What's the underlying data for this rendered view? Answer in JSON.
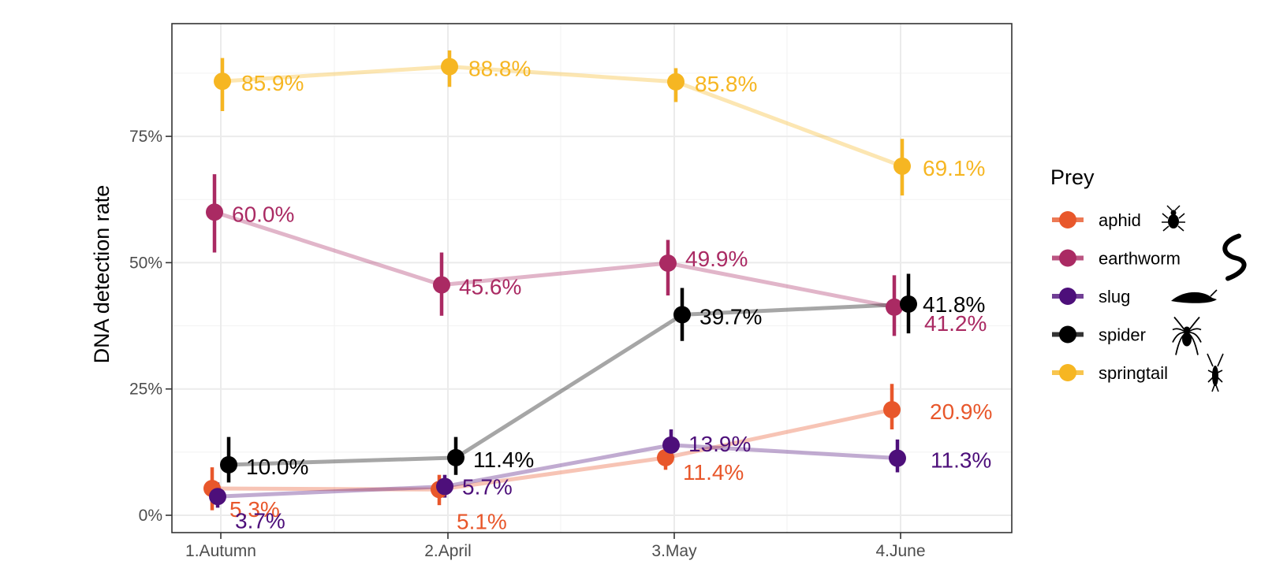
{
  "chart_data": {
    "type": "line",
    "ylabel": "DNA detection rate",
    "xlabel": "",
    "categories": [
      "1.Autumn",
      "2.April",
      "3.May",
      "4.June"
    ],
    "ylim": [
      0,
      0.97
    ],
    "yticks": [
      0,
      0.25,
      0.5,
      0.75
    ],
    "ytick_labels": [
      "0%",
      "25%",
      "50%",
      "75%"
    ],
    "grid": true,
    "legend": {
      "title": "Prey",
      "position": "right"
    },
    "series": [
      {
        "name": "aphid",
        "color": "#E8572B",
        "icon": "aphid-icon",
        "values": [
          0.053,
          0.051,
          0.114,
          0.209
        ],
        "lower": [
          0.01,
          0.02,
          0.09,
          0.17
        ],
        "upper": [
          0.095,
          0.08,
          0.145,
          0.26
        ],
        "labels": [
          "5.3%",
          "5.1%",
          "11.4%",
          "20.9%"
        ]
      },
      {
        "name": "earthworm",
        "color": "#AA2A63",
        "icon": "earthworm-icon",
        "values": [
          0.6,
          0.456,
          0.499,
          0.412
        ],
        "lower": [
          0.52,
          0.395,
          0.435,
          0.355
        ],
        "upper": [
          0.675,
          0.52,
          0.545,
          0.475
        ],
        "labels": [
          "60.0%",
          "45.6%",
          "49.9%",
          "41.2%"
        ]
      },
      {
        "name": "slug",
        "color": "#4D0F7A",
        "icon": "slug-icon",
        "values": [
          0.037,
          0.057,
          0.139,
          0.113
        ],
        "lower": [
          0.015,
          0.035,
          0.11,
          0.085
        ],
        "upper": [
          0.065,
          0.08,
          0.17,
          0.15
        ],
        "labels": [
          "3.7%",
          "5.7%",
          "13.9%",
          "11.3%"
        ]
      },
      {
        "name": "spider",
        "color": "#000000",
        "icon": "spider-icon",
        "values": [
          0.1,
          0.114,
          0.397,
          0.418
        ],
        "lower": [
          0.065,
          0.08,
          0.345,
          0.36
        ],
        "upper": [
          0.155,
          0.155,
          0.45,
          0.478
        ],
        "labels": [
          "10.0%",
          "11.4%",
          "39.7%",
          "41.8%"
        ]
      },
      {
        "name": "springtail",
        "color": "#F6B622",
        "icon": "springtail-icon",
        "values": [
          0.859,
          0.888,
          0.858,
          0.691
        ],
        "lower": [
          0.8,
          0.848,
          0.818,
          0.633
        ],
        "upper": [
          0.905,
          0.92,
          0.885,
          0.745
        ],
        "labels": [
          "85.9%",
          "88.8%",
          "85.8%",
          "69.1%"
        ]
      }
    ]
  }
}
